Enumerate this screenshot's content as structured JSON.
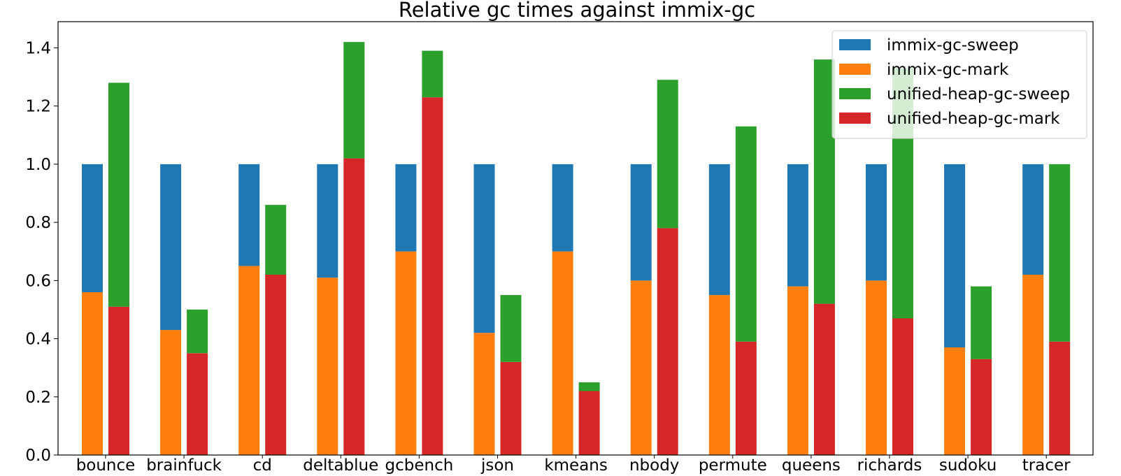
{
  "chart_data": {
    "type": "bar",
    "title": "Relative gc times against immix-gc",
    "xlabel": "",
    "ylabel": "",
    "ylim": [
      0,
      1.49
    ],
    "yticks": [
      "0.0",
      "0.2",
      "0.4",
      "0.6",
      "0.8",
      "1.0",
      "1.2",
      "1.4"
    ],
    "ytick_values": [
      0,
      0.2,
      0.4,
      0.6,
      0.8,
      1.0,
      1.2,
      1.4
    ],
    "grid": false,
    "legend_position": "top-right",
    "stacked": true,
    "categories": [
      "bounce",
      "brainfuck",
      "cd",
      "deltablue",
      "gcbench",
      "json",
      "kmeans",
      "nbody",
      "permute",
      "queens",
      "richards",
      "sudoku",
      "tracer"
    ],
    "series": [
      {
        "name": "immix-gc-sweep",
        "color": "#1f77b4",
        "stack": "immix-gc",
        "values": [
          0.44,
          0.57,
          0.35,
          0.39,
          0.3,
          0.58,
          0.3,
          0.4,
          0.45,
          0.42,
          0.4,
          0.63,
          0.38
        ]
      },
      {
        "name": "immix-gc-mark",
        "color": "#ff7f0e",
        "stack": "immix-gc",
        "values": [
          0.56,
          0.43,
          0.65,
          0.61,
          0.7,
          0.42,
          0.7,
          0.6,
          0.55,
          0.58,
          0.6,
          0.37,
          0.62
        ]
      },
      {
        "name": "unified-heap-gc-sweep",
        "color": "#2ca02c",
        "stack": "unified-heap-gc",
        "values": [
          0.77,
          0.15,
          0.24,
          0.4,
          0.16,
          0.23,
          0.03,
          0.51,
          0.74,
          0.84,
          0.86,
          0.25,
          0.61
        ]
      },
      {
        "name": "unified-heap-gc-mark",
        "color": "#d62728",
        "stack": "unified-heap-gc",
        "values": [
          0.51,
          0.35,
          0.62,
          1.02,
          1.23,
          0.32,
          0.22,
          0.78,
          0.39,
          0.52,
          0.47,
          0.33,
          0.39
        ]
      }
    ]
  }
}
